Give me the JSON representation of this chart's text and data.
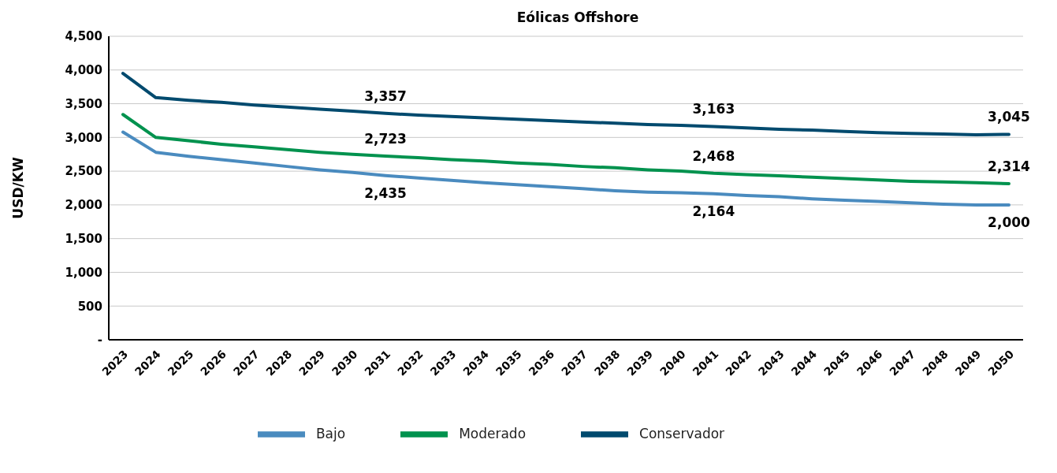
{
  "chart_data": {
    "type": "line",
    "title": "Eólicas Offshore",
    "ylabel": "USD/KW",
    "categories": [
      "2023",
      "2024",
      "2025",
      "2026",
      "2027",
      "2028",
      "2029",
      "2030",
      "2031",
      "2032",
      "2033",
      "2034",
      "2035",
      "2036",
      "2037",
      "2038",
      "2039",
      "2040",
      "2041",
      "2042",
      "2043",
      "2044",
      "2045",
      "2046",
      "2047",
      "2048",
      "2049",
      "2050"
    ],
    "series": [
      {
        "name": "Bajo",
        "color": "#4a8bbf",
        "values": [
          3080,
          2780,
          2720,
          2670,
          2620,
          2570,
          2520,
          2480,
          2435,
          2400,
          2365,
          2330,
          2300,
          2270,
          2240,
          2210,
          2190,
          2180,
          2164,
          2140,
          2120,
          2090,
          2070,
          2050,
          2030,
          2010,
          2000,
          2000
        ],
        "value_labels": [
          null,
          null,
          null,
          null,
          null,
          null,
          null,
          null,
          "2,435",
          null,
          null,
          null,
          null,
          null,
          null,
          null,
          null,
          null,
          "2,164",
          null,
          null,
          null,
          null,
          null,
          null,
          null,
          null,
          "2,000"
        ]
      },
      {
        "name": "Moderado",
        "color": "#00924e",
        "values": [
          3340,
          3000,
          2950,
          2900,
          2860,
          2820,
          2780,
          2750,
          2723,
          2700,
          2670,
          2650,
          2620,
          2600,
          2570,
          2550,
          2520,
          2500,
          2468,
          2450,
          2430,
          2410,
          2390,
          2370,
          2350,
          2340,
          2330,
          2314
        ],
        "value_labels": [
          null,
          null,
          null,
          null,
          null,
          null,
          null,
          null,
          "2,723",
          null,
          null,
          null,
          null,
          null,
          null,
          null,
          null,
          null,
          "2,468",
          null,
          null,
          null,
          null,
          null,
          null,
          null,
          null,
          "2,314"
        ]
      },
      {
        "name": "Conservador",
        "color": "#004a6e",
        "values": [
          3950,
          3590,
          3550,
          3520,
          3480,
          3450,
          3420,
          3390,
          3357,
          3330,
          3310,
          3290,
          3270,
          3250,
          3230,
          3210,
          3190,
          3180,
          3163,
          3140,
          3120,
          3110,
          3090,
          3070,
          3060,
          3050,
          3040,
          3045
        ],
        "value_labels": [
          null,
          null,
          null,
          null,
          null,
          null,
          null,
          null,
          "3,357",
          null,
          null,
          null,
          null,
          null,
          null,
          null,
          null,
          null,
          "3,163",
          null,
          null,
          null,
          null,
          null,
          null,
          null,
          null,
          "3,045"
        ]
      }
    ],
    "ylim": [
      0,
      4500
    ],
    "yticks": [
      {
        "value": 0,
        "label": "-"
      },
      {
        "value": 500,
        "label": "500"
      },
      {
        "value": 1000,
        "label": "1,000"
      },
      {
        "value": 1500,
        "label": "1,500"
      },
      {
        "value": 2000,
        "label": "2,000"
      },
      {
        "value": 2500,
        "label": "2,500"
      },
      {
        "value": 3000,
        "label": "3,000"
      },
      {
        "value": 3500,
        "label": "3,500"
      },
      {
        "value": 4000,
        "label": "4,000"
      },
      {
        "value": 4500,
        "label": "4,500"
      }
    ],
    "grid": "y",
    "legend": "bottom",
    "marker": "none",
    "line_style": "solid"
  }
}
